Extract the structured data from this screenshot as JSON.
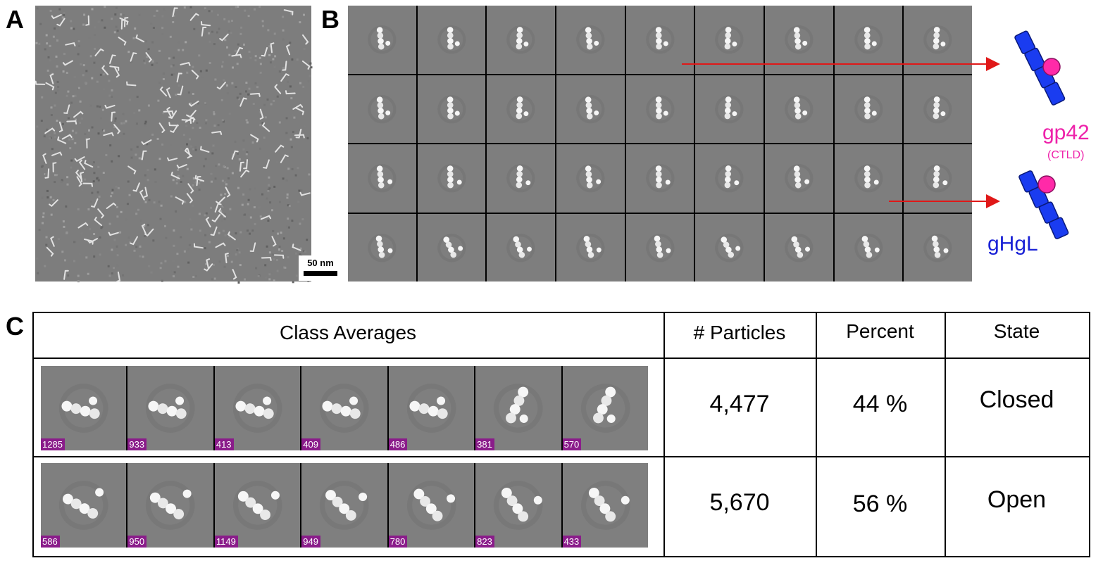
{
  "panels": {
    "a": {
      "label": "A",
      "scale_bar": "50 nm"
    },
    "b": {
      "label": "B",
      "gp42_label": "gp42",
      "ctld_label": "(CTLD)",
      "ghgl_label": "gHgL"
    },
    "c": {
      "label": "C"
    }
  },
  "colors": {
    "gp42": "#ee22aa",
    "ghgl": "#1a22d6",
    "arrow": "#e01818",
    "count_badge": "#8a1c8a"
  },
  "table": {
    "headers": {
      "class_averages": "Class Averages",
      "particles": "# Particles",
      "percent": "Percent",
      "state": "State"
    },
    "rows": [
      {
        "particles": "4,477",
        "percent": "44 %",
        "state": "Closed",
        "counts": [
          "1285",
          "933",
          "413",
          "409",
          "486",
          "381",
          "570"
        ]
      },
      {
        "particles": "5,670",
        "percent": "56 %",
        "state": "Open",
        "counts": [
          "586",
          "950",
          "1149",
          "949",
          "780",
          "823",
          "433"
        ]
      }
    ]
  }
}
